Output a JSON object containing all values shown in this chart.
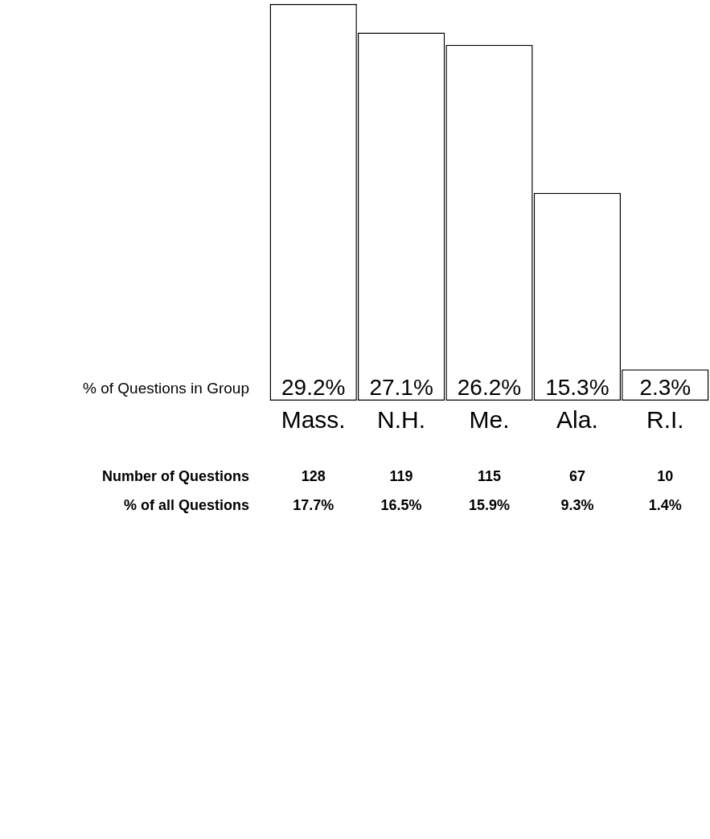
{
  "chart_data": {
    "type": "bar",
    "categories": [
      "Mass.",
      "N.H.",
      "Me.",
      "Ala.",
      "R.I."
    ],
    "series": [
      {
        "name": "% of Questions in Group",
        "color": "#ffffff",
        "values": [
          29.2,
          27.1,
          26.2,
          15.3,
          2.3
        ],
        "value_labels": [
          "29.2%",
          "27.1%",
          "26.2%",
          "15.3%",
          "2.3%"
        ]
      }
    ],
    "grid": false,
    "legend": false,
    "tick_labels": "x",
    "annotations": [
      "Number of Questions",
      "128",
      "119",
      "115",
      "67",
      "10",
      "% of all Questions",
      "17.7%",
      "16.5%",
      "15.9%",
      "9.3%",
      "1.4%"
    ]
  }
}
